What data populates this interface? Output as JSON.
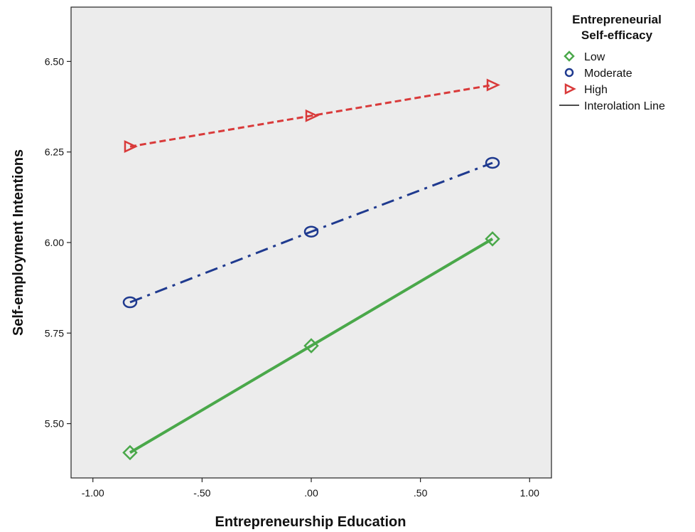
{
  "chart_data": {
    "type": "line",
    "xlabel": "Entrepreneurship Education",
    "ylabel": "Self-employment Intentions",
    "xlim": [
      -1.1,
      1.1
    ],
    "ylim": [
      5.35,
      6.65
    ],
    "xticks": [
      -1.0,
      -0.5,
      0.0,
      0.5,
      1.0
    ],
    "xtick_labels": [
      "-1.00",
      "-.50",
      ".00",
      ".50",
      "1.00"
    ],
    "yticks": [
      5.5,
      5.75,
      6.0,
      6.25,
      6.5
    ],
    "ytick_labels": [
      "5.50",
      "5.75",
      "6.00",
      "6.25",
      "6.50"
    ],
    "grid": false,
    "x": [
      -0.83,
      0.0,
      0.83
    ],
    "series": [
      {
        "name": "Low",
        "values": [
          5.42,
          5.715,
          6.01
        ],
        "color": "#4aa84a",
        "marker": "diamond",
        "dash": "solid"
      },
      {
        "name": "Moderate",
        "values": [
          5.835,
          6.03,
          6.22
        ],
        "color": "#1f3a8f",
        "marker": "circle",
        "dash": "dashdot"
      },
      {
        "name": "High",
        "values": [
          6.265,
          6.35,
          6.435
        ],
        "color": "#d93a3a",
        "marker": "triangle-right",
        "dash": "dashed"
      }
    ],
    "legend": {
      "title_lines": [
        "Entrepreneurial",
        "Self-efficacy"
      ],
      "placement": "right",
      "extra_entry": "Interolation Line"
    },
    "plot_background": "#ececec"
  }
}
